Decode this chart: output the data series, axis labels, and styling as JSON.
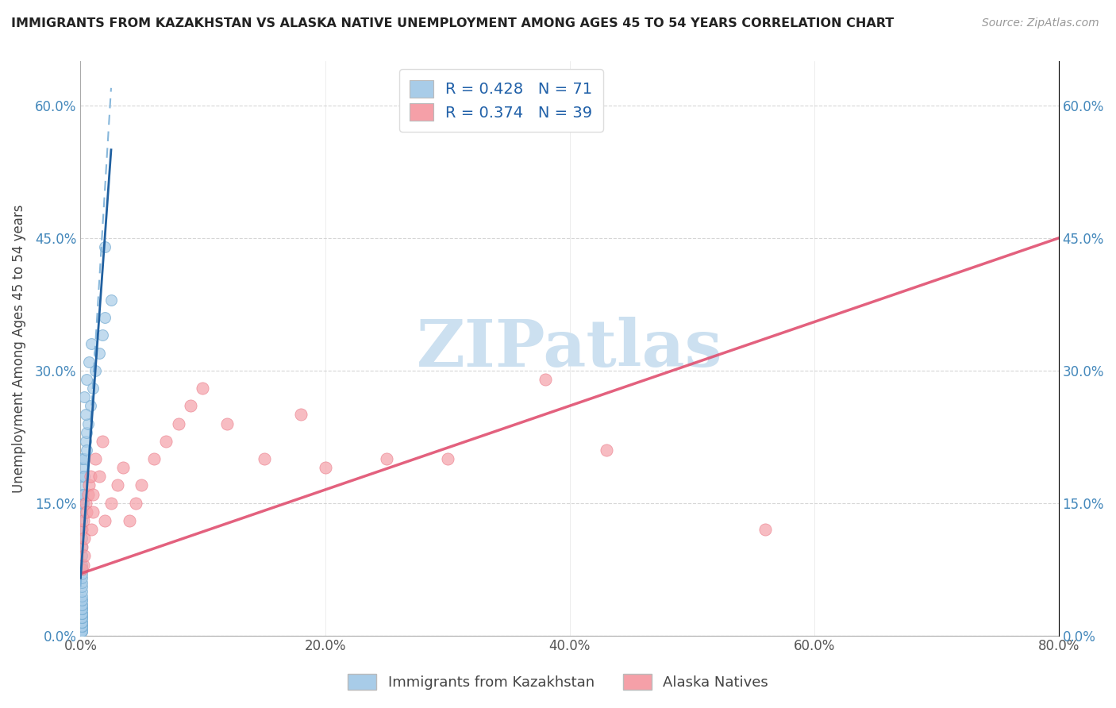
{
  "title": "IMMIGRANTS FROM KAZAKHSTAN VS ALASKA NATIVE UNEMPLOYMENT AMONG AGES 45 TO 54 YEARS CORRELATION CHART",
  "source": "Source: ZipAtlas.com",
  "ylabel": "Unemployment Among Ages 45 to 54 years",
  "xlim": [
    0.0,
    0.8
  ],
  "ylim": [
    0.0,
    0.65
  ],
  "xticks": [
    0.0,
    0.2,
    0.4,
    0.6,
    0.8
  ],
  "yticks": [
    0.0,
    0.15,
    0.3,
    0.45,
    0.6
  ],
  "xtick_labels": [
    "0.0%",
    "20.0%",
    "40.0%",
    "60.0%",
    "80.0%"
  ],
  "ytick_labels": [
    "0.0%",
    "15.0%",
    "30.0%",
    "45.0%",
    "60.0%"
  ],
  "legend_R1": "R = 0.428",
  "legend_N1": "N = 71",
  "legend_R2": "R = 0.374",
  "legend_N2": "N = 39",
  "color_blue": "#a8cce8",
  "color_blue_edge": "#7aafd4",
  "color_blue_line": "#2060a0",
  "color_blue_dash": "#7ab0d8",
  "color_pink": "#f5a0a8",
  "color_pink_edge": "#e87080",
  "color_pink_line": "#e05070",
  "series1_label": "Immigrants from Kazakhstan",
  "series2_label": "Alaska Natives",
  "watermark_color": "#cce0f0",
  "grid_color": "#cccccc",
  "bg_color": "#ffffff",
  "blue_scatter_x": [
    0.0002,
    0.0003,
    0.0004,
    0.0005,
    0.0006,
    0.0007,
    0.0008,
    0.0009,
    0.001,
    0.001,
    0.001,
    0.001,
    0.001,
    0.001,
    0.001,
    0.001,
    0.001,
    0.001,
    0.001,
    0.001,
    0.001,
    0.001,
    0.001,
    0.001,
    0.001,
    0.001,
    0.001,
    0.001,
    0.001,
    0.001,
    0.001,
    0.001,
    0.001,
    0.001,
    0.001,
    0.001,
    0.001,
    0.001,
    0.001,
    0.001,
    0.001,
    0.001,
    0.001,
    0.001,
    0.001,
    0.001,
    0.001,
    0.001,
    0.001,
    0.001,
    0.002,
    0.002,
    0.003,
    0.003,
    0.004,
    0.005,
    0.005,
    0.006,
    0.008,
    0.01,
    0.012,
    0.015,
    0.018,
    0.02,
    0.025,
    0.005,
    0.007,
    0.009,
    0.003,
    0.004,
    0.02
  ],
  "blue_scatter_y": [
    0.005,
    0.005,
    0.005,
    0.005,
    0.005,
    0.005,
    0.005,
    0.005,
    0.005,
    0.01,
    0.01,
    0.01,
    0.01,
    0.015,
    0.015,
    0.015,
    0.02,
    0.02,
    0.02,
    0.025,
    0.025,
    0.025,
    0.03,
    0.03,
    0.03,
    0.035,
    0.035,
    0.04,
    0.04,
    0.045,
    0.05,
    0.055,
    0.06,
    0.065,
    0.07,
    0.075,
    0.08,
    0.09,
    0.1,
    0.11,
    0.12,
    0.13,
    0.14,
    0.15,
    0.155,
    0.16,
    0.17,
    0.18,
    0.19,
    0.2,
    0.15,
    0.16,
    0.18,
    0.2,
    0.22,
    0.21,
    0.23,
    0.24,
    0.26,
    0.28,
    0.3,
    0.32,
    0.34,
    0.36,
    0.38,
    0.29,
    0.31,
    0.33,
    0.27,
    0.25,
    0.44
  ],
  "pink_scatter_x": [
    0.001,
    0.001,
    0.001,
    0.002,
    0.002,
    0.003,
    0.003,
    0.004,
    0.005,
    0.006,
    0.007,
    0.008,
    0.009,
    0.01,
    0.01,
    0.012,
    0.015,
    0.018,
    0.02,
    0.025,
    0.03,
    0.035,
    0.04,
    0.045,
    0.05,
    0.06,
    0.07,
    0.08,
    0.09,
    0.1,
    0.12,
    0.15,
    0.18,
    0.2,
    0.25,
    0.3,
    0.38,
    0.43,
    0.56
  ],
  "pink_scatter_y": [
    0.075,
    0.1,
    0.12,
    0.08,
    0.13,
    0.09,
    0.11,
    0.15,
    0.14,
    0.16,
    0.17,
    0.18,
    0.12,
    0.14,
    0.16,
    0.2,
    0.18,
    0.22,
    0.13,
    0.15,
    0.17,
    0.19,
    0.13,
    0.15,
    0.17,
    0.2,
    0.22,
    0.24,
    0.26,
    0.28,
    0.24,
    0.2,
    0.25,
    0.19,
    0.2,
    0.2,
    0.29,
    0.21,
    0.12
  ],
  "blue_solid_line_x": [
    0.0,
    0.025
  ],
  "blue_solid_line_y": [
    0.065,
    0.55
  ],
  "blue_dash_line_x": [
    0.0,
    0.025
  ],
  "blue_dash_line_y": [
    0.055,
    0.62
  ],
  "pink_line_x": [
    0.0,
    0.8
  ],
  "pink_line_y": [
    0.07,
    0.45
  ]
}
